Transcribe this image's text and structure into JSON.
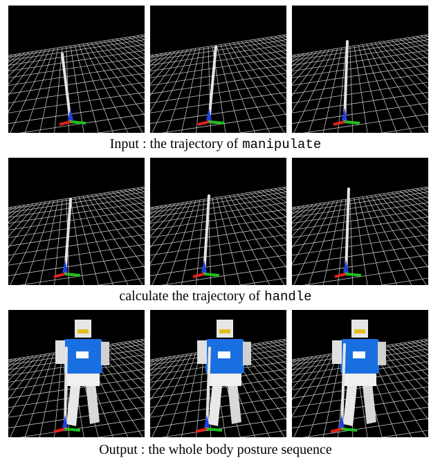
{
  "figure": {
    "rows": [
      {
        "caption": {
          "text": "Input : the trajectory of",
          "code": "manipulate"
        }
      },
      {
        "caption": {
          "text": "calculate the trajectory of",
          "code": "handle"
        }
      },
      {
        "caption": {
          "text": "Output : the whole body posture sequence",
          "code": null
        }
      }
    ]
  }
}
